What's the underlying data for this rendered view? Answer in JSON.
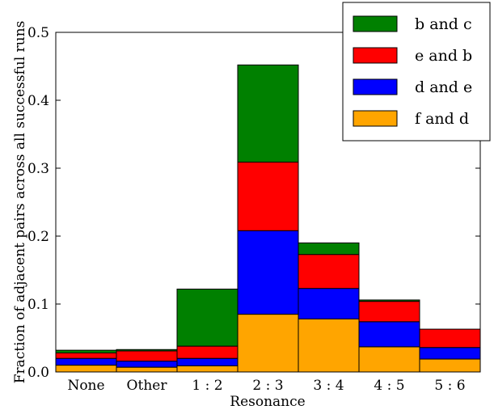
{
  "chart_data": {
    "type": "bar",
    "stacked": true,
    "xlabel": "Resonance",
    "ylabel": "Fraction of adjacent pairs across all successful runs",
    "ylim": [
      0,
      0.5
    ],
    "yticks": [
      "0.0",
      "0.1",
      "0.2",
      "0.3",
      "0.4",
      "0.5"
    ],
    "categories": [
      "None",
      "Other",
      "1 : 2",
      "2 : 3",
      "3 : 4",
      "4 : 5",
      "5 : 6"
    ],
    "series": [
      {
        "name": "f and d",
        "color": "#ffa500",
        "values": [
          0.01,
          0.007,
          0.009,
          0.085,
          0.078,
          0.037,
          0.019
        ]
      },
      {
        "name": "d and e",
        "color": "#0000ff",
        "values": [
          0.01,
          0.009,
          0.011,
          0.123,
          0.045,
          0.037,
          0.017
        ]
      },
      {
        "name": "e and b",
        "color": "#ff0000",
        "values": [
          0.008,
          0.015,
          0.018,
          0.101,
          0.05,
          0.03,
          0.027
        ]
      },
      {
        "name": "b and c",
        "color": "#008000",
        "values": [
          0.004,
          0.002,
          0.084,
          0.143,
          0.017,
          0.002,
          0.0
        ]
      }
    ],
    "legend_position": "top-right",
    "grid": false
  }
}
